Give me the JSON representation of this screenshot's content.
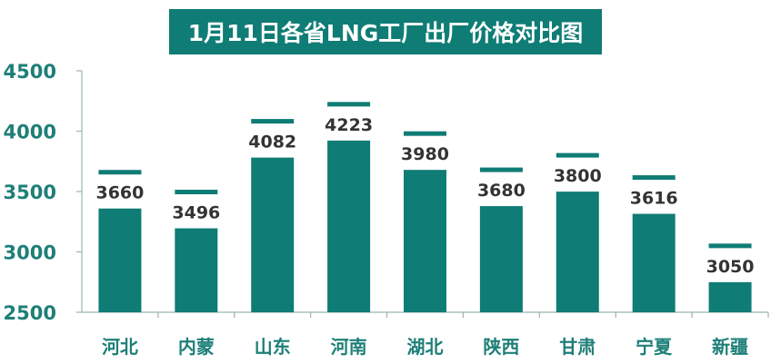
{
  "chart_data": {
    "type": "bar",
    "title": "1月11日各省LNG工厂出厂价格对比图",
    "categories": [
      "河北",
      "内蒙",
      "山东",
      "河南",
      "湖北",
      "陕西",
      "甘肃",
      "宁夏",
      "新疆"
    ],
    "values": [
      3660,
      3496,
      4082,
      4223,
      3980,
      3680,
      3800,
      3616,
      3050
    ],
    "ylim": [
      2500,
      4500
    ],
    "yticks": [
      "2500",
      "3000",
      "3500",
      "4000",
      "4500"
    ],
    "grid": false,
    "legend": "none",
    "colors": {
      "bar": "#0f7c75",
      "axis": "#9bb5b3",
      "label": "#333333",
      "tick": "#1e7f78"
    }
  }
}
